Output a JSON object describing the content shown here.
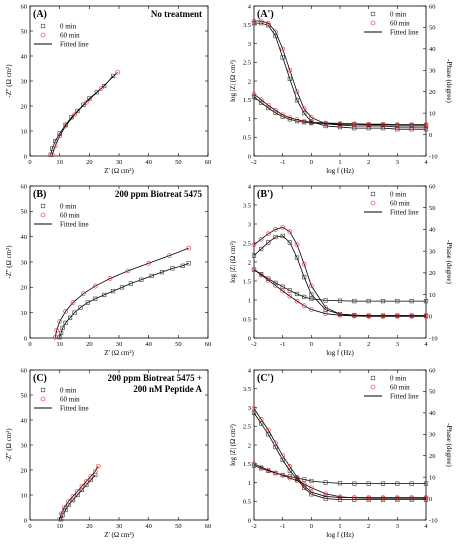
{
  "colors": {
    "t0": "#3a3a3a",
    "t60": "#e8222a",
    "fit": "#000000"
  },
  "legend": {
    "s0": "0 min",
    "s60": "60 min",
    "fit": "Fitted line"
  },
  "chart_data": [
    {
      "id": "A",
      "type": "scatter",
      "label": "(A)",
      "note": [
        "No treatment"
      ],
      "xlabel": "Z' (Ω cm²)",
      "ylabel": "-Z'' (Ω cm²)",
      "xlim": [
        0,
        60
      ],
      "ylim": [
        0,
        60
      ],
      "xticks": [
        0,
        10,
        20,
        30,
        40,
        50,
        60
      ],
      "yticks": [
        0,
        10,
        20,
        30,
        40,
        50,
        60
      ],
      "series": [
        {
          "name": "0 min",
          "x": [
            7,
            7.5,
            8.5,
            10,
            12,
            14,
            16,
            18,
            20,
            22.5,
            25,
            28
          ],
          "y": [
            0.5,
            3,
            6,
            9,
            12.5,
            15.5,
            18,
            20.5,
            23,
            25.5,
            28,
            32
          ]
        },
        {
          "name": "60 min",
          "x": [
            7.5,
            8.5,
            10,
            12,
            15,
            19,
            24,
            29.5
          ],
          "y": [
            0.5,
            4,
            8,
            12,
            16.5,
            21.5,
            27,
            33.5
          ]
        }
      ]
    },
    {
      "id": "B",
      "type": "scatter",
      "label": "(B)",
      "note": [
        "200 ppm Biotreat 5475"
      ],
      "xlabel": "Z' (Ω cm²)",
      "ylabel": "-Z'' (Ω cm²)",
      "xlim": [
        0,
        60
      ],
      "ylim": [
        0,
        60
      ],
      "xticks": [
        0,
        10,
        20,
        30,
        40,
        50,
        60
      ],
      "yticks": [
        0,
        10,
        20,
        30,
        40,
        50,
        60
      ],
      "series": [
        {
          "name": "0 min",
          "x": [
            10,
            10.5,
            11,
            12,
            13.5,
            15,
            17,
            19.5,
            22,
            25,
            28,
            31,
            34,
            37.5,
            41,
            44.5,
            48,
            51.5,
            53.5
          ],
          "y": [
            0.3,
            2,
            4,
            6,
            8,
            10,
            12,
            14,
            15.5,
            17,
            18.5,
            20,
            21.5,
            23,
            24.5,
            26,
            27.5,
            28.5,
            29.5
          ]
        },
        {
          "name": "60 min",
          "x": [
            8.5,
            9,
            10,
            12,
            14.5,
            18,
            22,
            27,
            33,
            40,
            47,
            53.5
          ],
          "y": [
            0.3,
            3,
            6.5,
            10.5,
            14,
            17.5,
            20.5,
            23.5,
            26.5,
            29.5,
            32.5,
            35.5
          ]
        }
      ]
    },
    {
      "id": "C",
      "type": "scatter",
      "label": "(C)",
      "note": [
        "200 ppm Biotreat 5475 +",
        "200 nM Peptide A"
      ],
      "xlabel": "Z' (Ω cm²)",
      "ylabel": "-Z'' (Ω cm²)",
      "xlim": [
        0,
        60
      ],
      "ylim": [
        0,
        60
      ],
      "xticks": [
        0,
        10,
        20,
        30,
        40,
        50,
        60
      ],
      "yticks": [
        0,
        10,
        20,
        30,
        40,
        50,
        60
      ],
      "series": [
        {
          "name": "0 min",
          "x": [
            10.5,
            11,
            12,
            13,
            14.5,
            16,
            17.5,
            19,
            20.5,
            22
          ],
          "y": [
            0.3,
            2,
            4,
            6,
            8,
            10,
            12,
            14,
            16,
            18
          ]
        },
        {
          "name": "60 min",
          "x": [
            10,
            10.5,
            11.5,
            13,
            14.5,
            16,
            17.5,
            19,
            20.5,
            22,
            23
          ],
          "y": [
            0.3,
            2.5,
            5,
            7.5,
            9.5,
            11.5,
            13.5,
            15.5,
            17.5,
            19.5,
            21.5
          ]
        }
      ]
    },
    {
      "id": "A2",
      "type": "scatter",
      "label": "(A')",
      "xlabel": "log f (Hz)",
      "ylabel": "log |Z| (Ω cm²)",
      "y2label": "-Phase (degree)",
      "xlim": [
        -2,
        4
      ],
      "ylim": [
        0,
        4
      ],
      "y2lim": [
        -10,
        60
      ],
      "xticks": [
        -2,
        -1,
        0,
        1,
        2,
        3,
        4
      ],
      "yticks": [
        0,
        0.5,
        1,
        1.5,
        2,
        2.5,
        3,
        3.5,
        4
      ],
      "y2ticks": [
        -10,
        0,
        10,
        20,
        30,
        40,
        50,
        60
      ],
      "series": [
        {
          "name": "0 min",
          "quantity": "log|Z|",
          "x": [
            -2,
            -1.75,
            -1.5,
            -1.25,
            -1,
            -0.75,
            -0.5,
            -0.25,
            0,
            0.5,
            1,
            1.5,
            2,
            2.5,
            3,
            3.5,
            4
          ],
          "y": [
            1.58,
            1.42,
            1.28,
            1.15,
            1.05,
            0.98,
            0.93,
            0.9,
            0.88,
            0.86,
            0.85,
            0.84,
            0.83,
            0.83,
            0.82,
            0.82,
            0.82
          ]
        },
        {
          "name": "60 min",
          "quantity": "log|Z|",
          "x": [
            -2,
            -1.75,
            -1.5,
            -1.25,
            -1,
            -0.75,
            -0.5,
            -0.25,
            0,
            0.5,
            1,
            1.5,
            2,
            2.5,
            3,
            3.5,
            4
          ],
          "y": [
            1.65,
            1.5,
            1.35,
            1.22,
            1.1,
            1.02,
            0.97,
            0.93,
            0.9,
            0.88,
            0.87,
            0.86,
            0.85,
            0.85,
            0.84,
            0.84,
            0.84
          ]
        },
        {
          "name": "0 min",
          "quantity": "-Phase",
          "x": [
            -2,
            -1.75,
            -1.5,
            -1.25,
            -1,
            -0.75,
            -0.5,
            -0.25,
            0,
            0.5,
            1,
            1.5,
            2,
            2.5,
            3,
            3.5,
            4
          ],
          "y": [
            52,
            52,
            51,
            46,
            36,
            26,
            16,
            10,
            6,
            4,
            3.5,
            3,
            3,
            3,
            2.5,
            2.5,
            2.5
          ]
        },
        {
          "name": "60 min",
          "quantity": "-Phase",
          "x": [
            -2,
            -1.75,
            -1.5,
            -1.25,
            -1,
            -0.75,
            -0.5,
            -0.25,
            0,
            0.5,
            1,
            1.5,
            2,
            2.5,
            3,
            3.5,
            4
          ],
          "y": [
            53,
            53,
            52,
            48,
            40,
            30,
            20,
            12,
            8,
            5,
            4.5,
            4,
            4,
            4,
            3.5,
            3.5,
            3.5
          ]
        }
      ]
    },
    {
      "id": "B2",
      "type": "scatter",
      "label": "(B')",
      "xlabel": "log f (Hz)",
      "ylabel": "log |Z| (Ω cm²)",
      "y2label": "-Phase (degree)",
      "xlim": [
        -2,
        4
      ],
      "ylim": [
        0,
        4
      ],
      "y2lim": [
        -10,
        60
      ],
      "xticks": [
        -2,
        -1,
        0,
        1,
        2,
        3,
        4
      ],
      "yticks": [
        0,
        0.5,
        1,
        1.5,
        2,
        2.5,
        3,
        3.5,
        4
      ],
      "y2ticks": [
        -10,
        0,
        10,
        20,
        30,
        40,
        50,
        60
      ],
      "series": [
        {
          "name": "0 min",
          "quantity": "log|Z|",
          "x": [
            -2,
            -1.75,
            -1.5,
            -1.25,
            -1,
            -0.75,
            -0.5,
            -0.25,
            0,
            0.5,
            1,
            1.5,
            2,
            2.5,
            3,
            3.5,
            4
          ],
          "y": [
            1.8,
            1.68,
            1.56,
            1.45,
            1.35,
            1.25,
            1.16,
            1.08,
            1.03,
            0.99,
            0.98,
            0.97,
            0.97,
            0.97,
            0.97,
            0.97,
            0.97
          ]
        },
        {
          "name": "60 min",
          "quantity": "log|Z|",
          "x": [
            -2,
            -1.75,
            -1.5,
            -1.25,
            -1,
            -0.75,
            -0.5,
            -0.25,
            0,
            0.5,
            1,
            1.5,
            2,
            2.5,
            3,
            3.5,
            4
          ],
          "y": [
            1.8,
            1.66,
            1.52,
            1.38,
            1.24,
            1.1,
            0.97,
            0.85,
            0.75,
            0.64,
            0.6,
            0.58,
            0.57,
            0.57,
            0.57,
            0.57,
            0.57
          ]
        },
        {
          "name": "0 min",
          "quantity": "-Phase",
          "x": [
            -2,
            -1.75,
            -1.5,
            -1.25,
            -1,
            -0.75,
            -0.5,
            -0.25,
            0,
            0.5,
            1,
            1.5,
            2,
            2.5,
            3,
            3.5,
            4
          ],
          "y": [
            28,
            31,
            34,
            36.5,
            37,
            34,
            27,
            18,
            10,
            3,
            1,
            0.5,
            0.3,
            0.3,
            0.3,
            0.3,
            0.3
          ]
        },
        {
          "name": "60 min",
          "quantity": "-Phase",
          "x": [
            -2,
            -1.75,
            -1.5,
            -1.25,
            -1,
            -0.75,
            -0.5,
            -0.25,
            0,
            0.5,
            1,
            1.5,
            2,
            2.5,
            3,
            3.5,
            4
          ],
          "y": [
            33,
            35.5,
            38,
            40,
            41,
            39,
            33,
            24,
            14,
            4,
            1,
            0.5,
            0.3,
            0.3,
            0.3,
            0.3,
            0.3
          ]
        }
      ]
    },
    {
      "id": "C2",
      "type": "scatter",
      "label": "(C')",
      "xlabel": "log f (Hz)",
      "ylabel": "log |Z| (Ω cm²)",
      "y2label": "-Phase (degree)",
      "xlim": [
        -2,
        4
      ],
      "ylim": [
        0,
        4
      ],
      "y2lim": [
        -10,
        60
      ],
      "xticks": [
        -2,
        -1,
        0,
        1,
        2,
        3,
        4
      ],
      "yticks": [
        0,
        0.5,
        1,
        1.5,
        2,
        2.5,
        3,
        3.5,
        4
      ],
      "y2ticks": [
        -10,
        0,
        10,
        20,
        30,
        40,
        50,
        60
      ],
      "series": [
        {
          "name": "0 min",
          "quantity": "log|Z|",
          "x": [
            -2,
            -1.75,
            -1.5,
            -1.25,
            -1,
            -0.75,
            -0.5,
            -0.25,
            0,
            0.5,
            1,
            1.5,
            2,
            2.5,
            3,
            3.5,
            4
          ],
          "y": [
            1.45,
            1.38,
            1.31,
            1.25,
            1.2,
            1.16,
            1.12,
            1.08,
            1.04,
            1.0,
            0.98,
            0.97,
            0.97,
            0.97,
            0.97,
            0.97,
            0.97
          ]
        },
        {
          "name": "60 min",
          "quantity": "log|Z|",
          "x": [
            -2,
            -1.75,
            -1.5,
            -1.25,
            -1,
            -0.75,
            -0.5,
            -0.25,
            0,
            0.5,
            1,
            1.5,
            2,
            2.5,
            3,
            3.5,
            4
          ],
          "y": [
            1.5,
            1.41,
            1.33,
            1.26,
            1.19,
            1.12,
            1.05,
            0.96,
            0.86,
            0.7,
            0.62,
            0.59,
            0.58,
            0.58,
            0.58,
            0.58,
            0.58
          ]
        },
        {
          "name": "0 min",
          "quantity": "-Phase",
          "x": [
            -2,
            -1.75,
            -1.5,
            -1.25,
            -1,
            -0.75,
            -0.5,
            -0.25,
            0,
            0.5,
            1,
            1.5,
            2,
            2.5,
            3,
            3.5,
            4
          ],
          "y": [
            40,
            35,
            30,
            24,
            18,
            13,
            9,
            5,
            2,
            0,
            -0.5,
            -0.5,
            -0.5,
            -0.5,
            -0.5,
            -0.5,
            -0.5
          ]
        },
        {
          "name": "60 min",
          "quantity": "-Phase",
          "x": [
            -2,
            -1.75,
            -1.5,
            -1.25,
            -1,
            -0.75,
            -0.5,
            -0.25,
            0,
            0.5,
            1,
            1.5,
            2,
            2.5,
            3,
            3.5,
            4
          ],
          "y": [
            42,
            37,
            32,
            26,
            20,
            15,
            10,
            6,
            3,
            1,
            0.5,
            0.5,
            0.5,
            0.5,
            0.5,
            0.5,
            0.5
          ]
        }
      ]
    }
  ]
}
